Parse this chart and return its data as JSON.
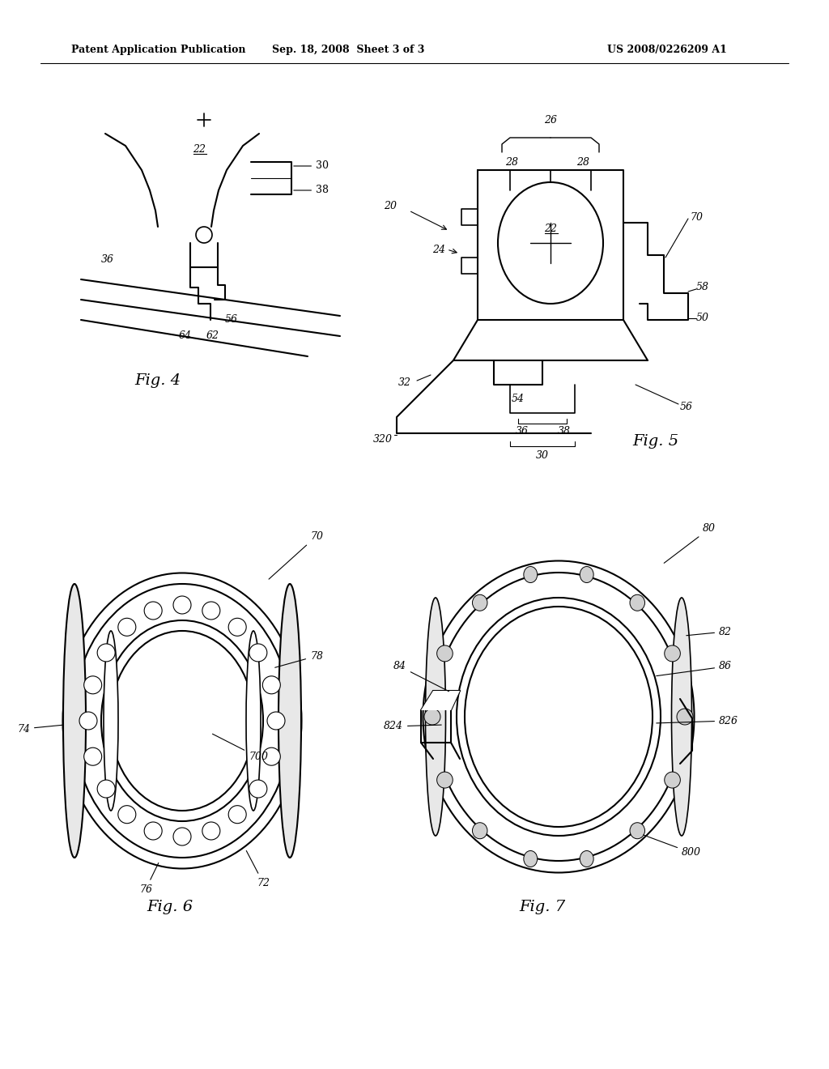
{
  "background_color": "#ffffff",
  "header_left": "Patent Application Publication",
  "header_mid": "Sep. 18, 2008  Sheet 3 of 3",
  "header_right": "US 2008/0226209 A1",
  "fig4_label": "Fig. 4",
  "fig5_label": "Fig. 5",
  "fig6_label": "Fig. 6",
  "fig7_label": "Fig. 7",
  "header_fontsize": 9,
  "fig_label_fontsize": 14
}
